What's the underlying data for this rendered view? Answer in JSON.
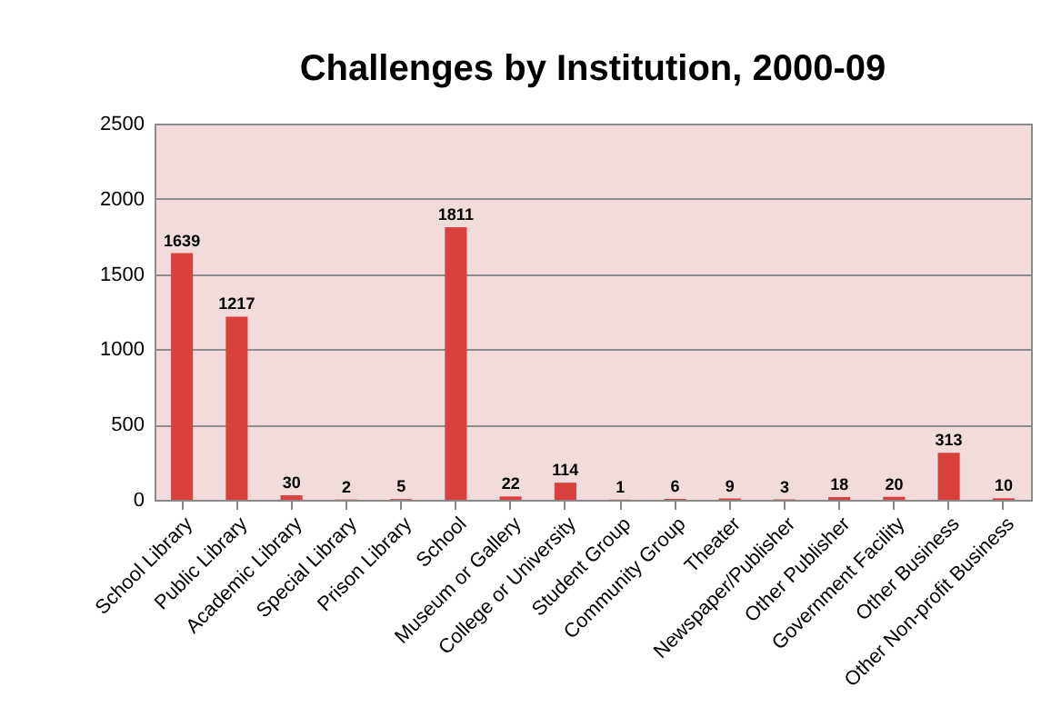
{
  "chart_data": {
    "type": "bar",
    "title": "Challenges by Institution, 2000-09",
    "categories": [
      "School Library",
      "Public Library",
      "Academic Library",
      "Special Library",
      "Prison Library",
      "School",
      "Museum or Gallery",
      "College or University",
      "Student Group",
      "Community Group",
      "Theater",
      "Newspaper/Publisher",
      "Other Publisher",
      "Government Facility",
      "Other Business",
      "Other Non-profit Business"
    ],
    "values": [
      1639,
      1217,
      30,
      2,
      5,
      1811,
      22,
      114,
      1,
      6,
      9,
      3,
      18,
      20,
      313,
      10
    ],
    "color": "#d9413f",
    "ylim": [
      0,
      2500
    ],
    "yticks": [
      0,
      500,
      1000,
      1500,
      2000,
      2500
    ],
    "grid": "y",
    "data_labels": true
  }
}
